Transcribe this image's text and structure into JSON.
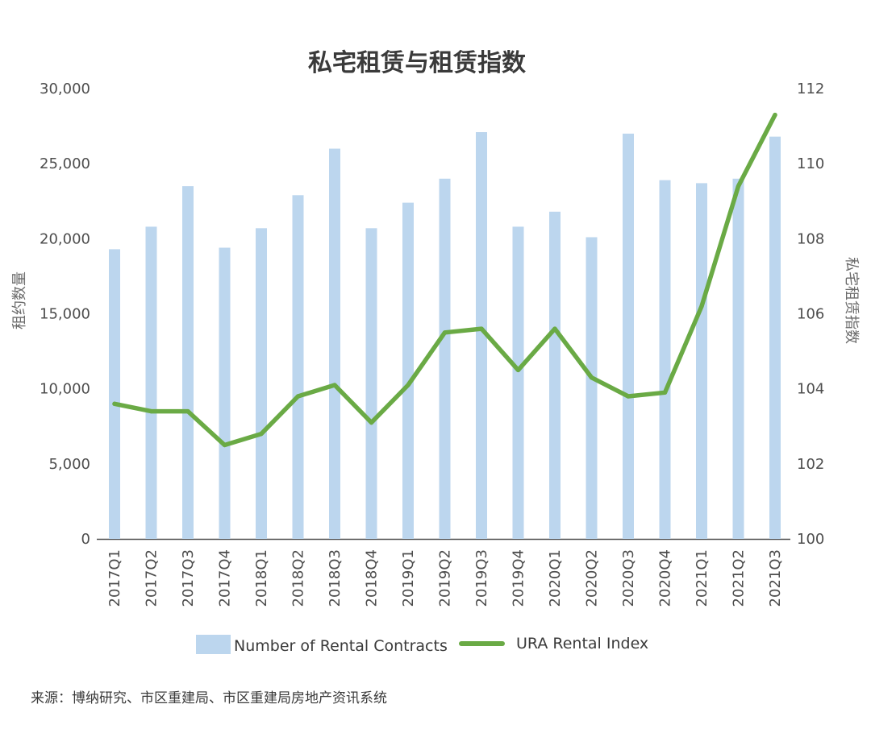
{
  "chart_data": {
    "type": "bar+line",
    "title": "私宅租赁与租赁指数",
    "categories": [
      "2017Q1",
      "2017Q2",
      "2017Q3",
      "2017Q4",
      "2018Q1",
      "2018Q2",
      "2018Q3",
      "2018Q4",
      "2019Q1",
      "2019Q2",
      "2019Q3",
      "2019Q4",
      "2020Q1",
      "2020Q2",
      "2020Q3",
      "2020Q4",
      "2021Q1",
      "2021Q2",
      "2021Q3"
    ],
    "series": [
      {
        "name": "Number of Rental Contracts",
        "kind": "bar",
        "axis": "left",
        "color": "#bcd6ee",
        "values": [
          19300,
          20800,
          23500,
          19400,
          20700,
          22900,
          26000,
          20700,
          22400,
          24000,
          27100,
          20800,
          21800,
          20100,
          27000,
          23900,
          23700,
          24000,
          26800
        ]
      },
      {
        "name": "URA Rental Index",
        "kind": "line",
        "axis": "right",
        "color": "#6aaa45",
        "values": [
          103.6,
          103.4,
          103.4,
          102.5,
          102.8,
          103.8,
          104.1,
          103.1,
          104.1,
          105.5,
          105.6,
          104.5,
          105.6,
          104.3,
          103.8,
          103.9,
          106.2,
          109.4,
          111.3
        ]
      }
    ],
    "y_left": {
      "label": "租约数量",
      "range": [
        0,
        30000
      ],
      "ticks": [
        0,
        5000,
        10000,
        15000,
        20000,
        25000,
        30000
      ],
      "tick_labels": [
        "0",
        "5,000",
        "10,000",
        "15,000",
        "20,000",
        "25,000",
        "30,000"
      ]
    },
    "y_right": {
      "label": "私宅租赁指数",
      "range": [
        100,
        112
      ],
      "ticks": [
        100,
        102,
        104,
        106,
        108,
        110,
        112
      ],
      "tick_labels": [
        "100",
        "102",
        "104",
        "106",
        "108",
        "110",
        "112"
      ]
    },
    "grid": false,
    "legend_position": "bottom",
    "source": "来源：博纳研究、市区重建局、市区重建局房地产资讯系统"
  }
}
